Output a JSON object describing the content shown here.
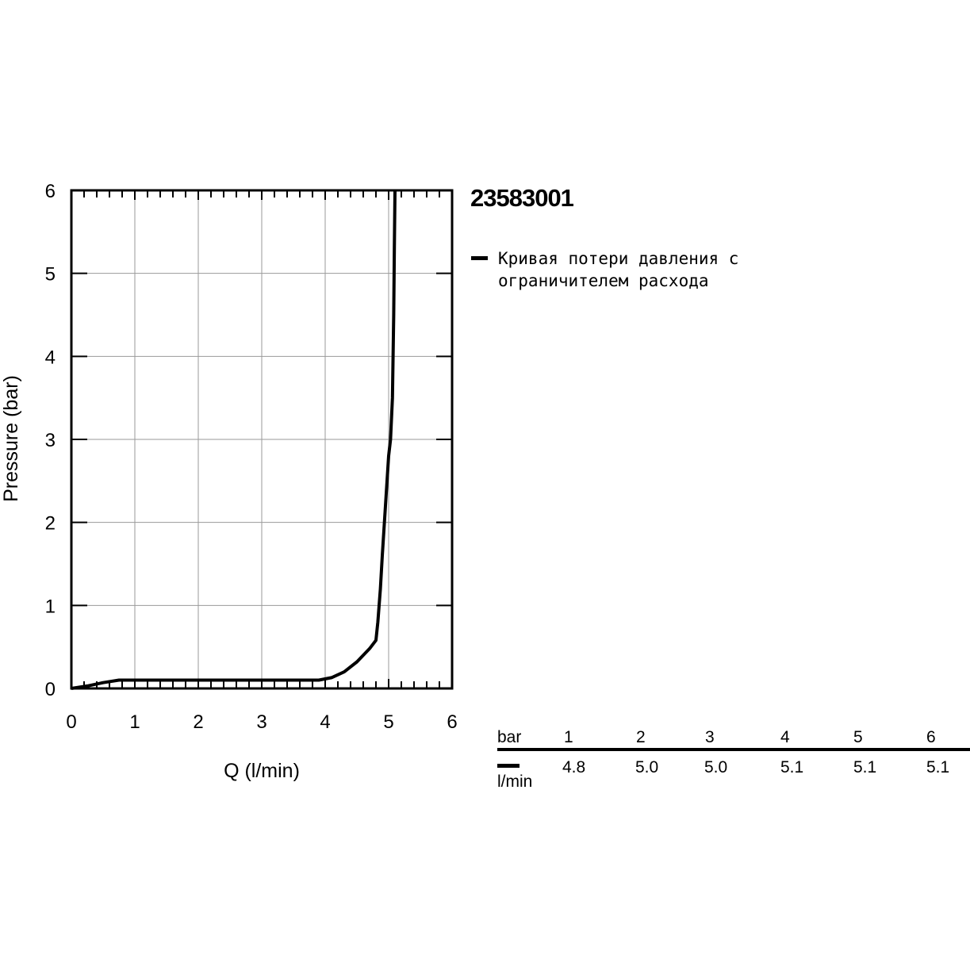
{
  "product_code": "23583001",
  "legend": {
    "text": "Кривая потери давления с\nограничителем расхода"
  },
  "chart_data": {
    "type": "line",
    "title": "",
    "xlabel": "Q (l/min)",
    "ylabel": "Pressure (bar)",
    "xlim": [
      0,
      6
    ],
    "ylim": [
      0,
      6
    ],
    "xticks": [
      "0",
      "1",
      "2",
      "3",
      "4",
      "5",
      "6"
    ],
    "yticks": [
      "0",
      "1",
      "2",
      "3",
      "4",
      "5",
      "6"
    ],
    "grid": true,
    "series": [
      {
        "name": "Кривая потери давления с ограничителем расхода",
        "color": "#000000",
        "x": [
          0,
          0.25,
          0.5,
          0.75,
          1.0,
          2.0,
          3.0,
          3.9,
          4.1,
          4.3,
          4.5,
          4.7,
          4.8,
          4.83,
          4.87,
          4.9,
          4.95,
          5.0,
          5.03,
          5.06,
          5.08,
          5.09,
          5.1
        ],
        "y": [
          0,
          0.03,
          0.07,
          0.1,
          0.1,
          0.1,
          0.1,
          0.1,
          0.13,
          0.2,
          0.32,
          0.48,
          0.58,
          0.8,
          1.2,
          1.6,
          2.2,
          2.8,
          3.0,
          3.5,
          4.5,
          5.3,
          6.0
        ]
      }
    ]
  },
  "value_table": {
    "header_label": "bar",
    "unit_label": "l/min",
    "pressures": [
      "1",
      "2",
      "3",
      "4",
      "5",
      "6"
    ],
    "flows": [
      "4.8",
      "5.0",
      "5.0",
      "5.1",
      "5.1",
      "5.1"
    ]
  }
}
